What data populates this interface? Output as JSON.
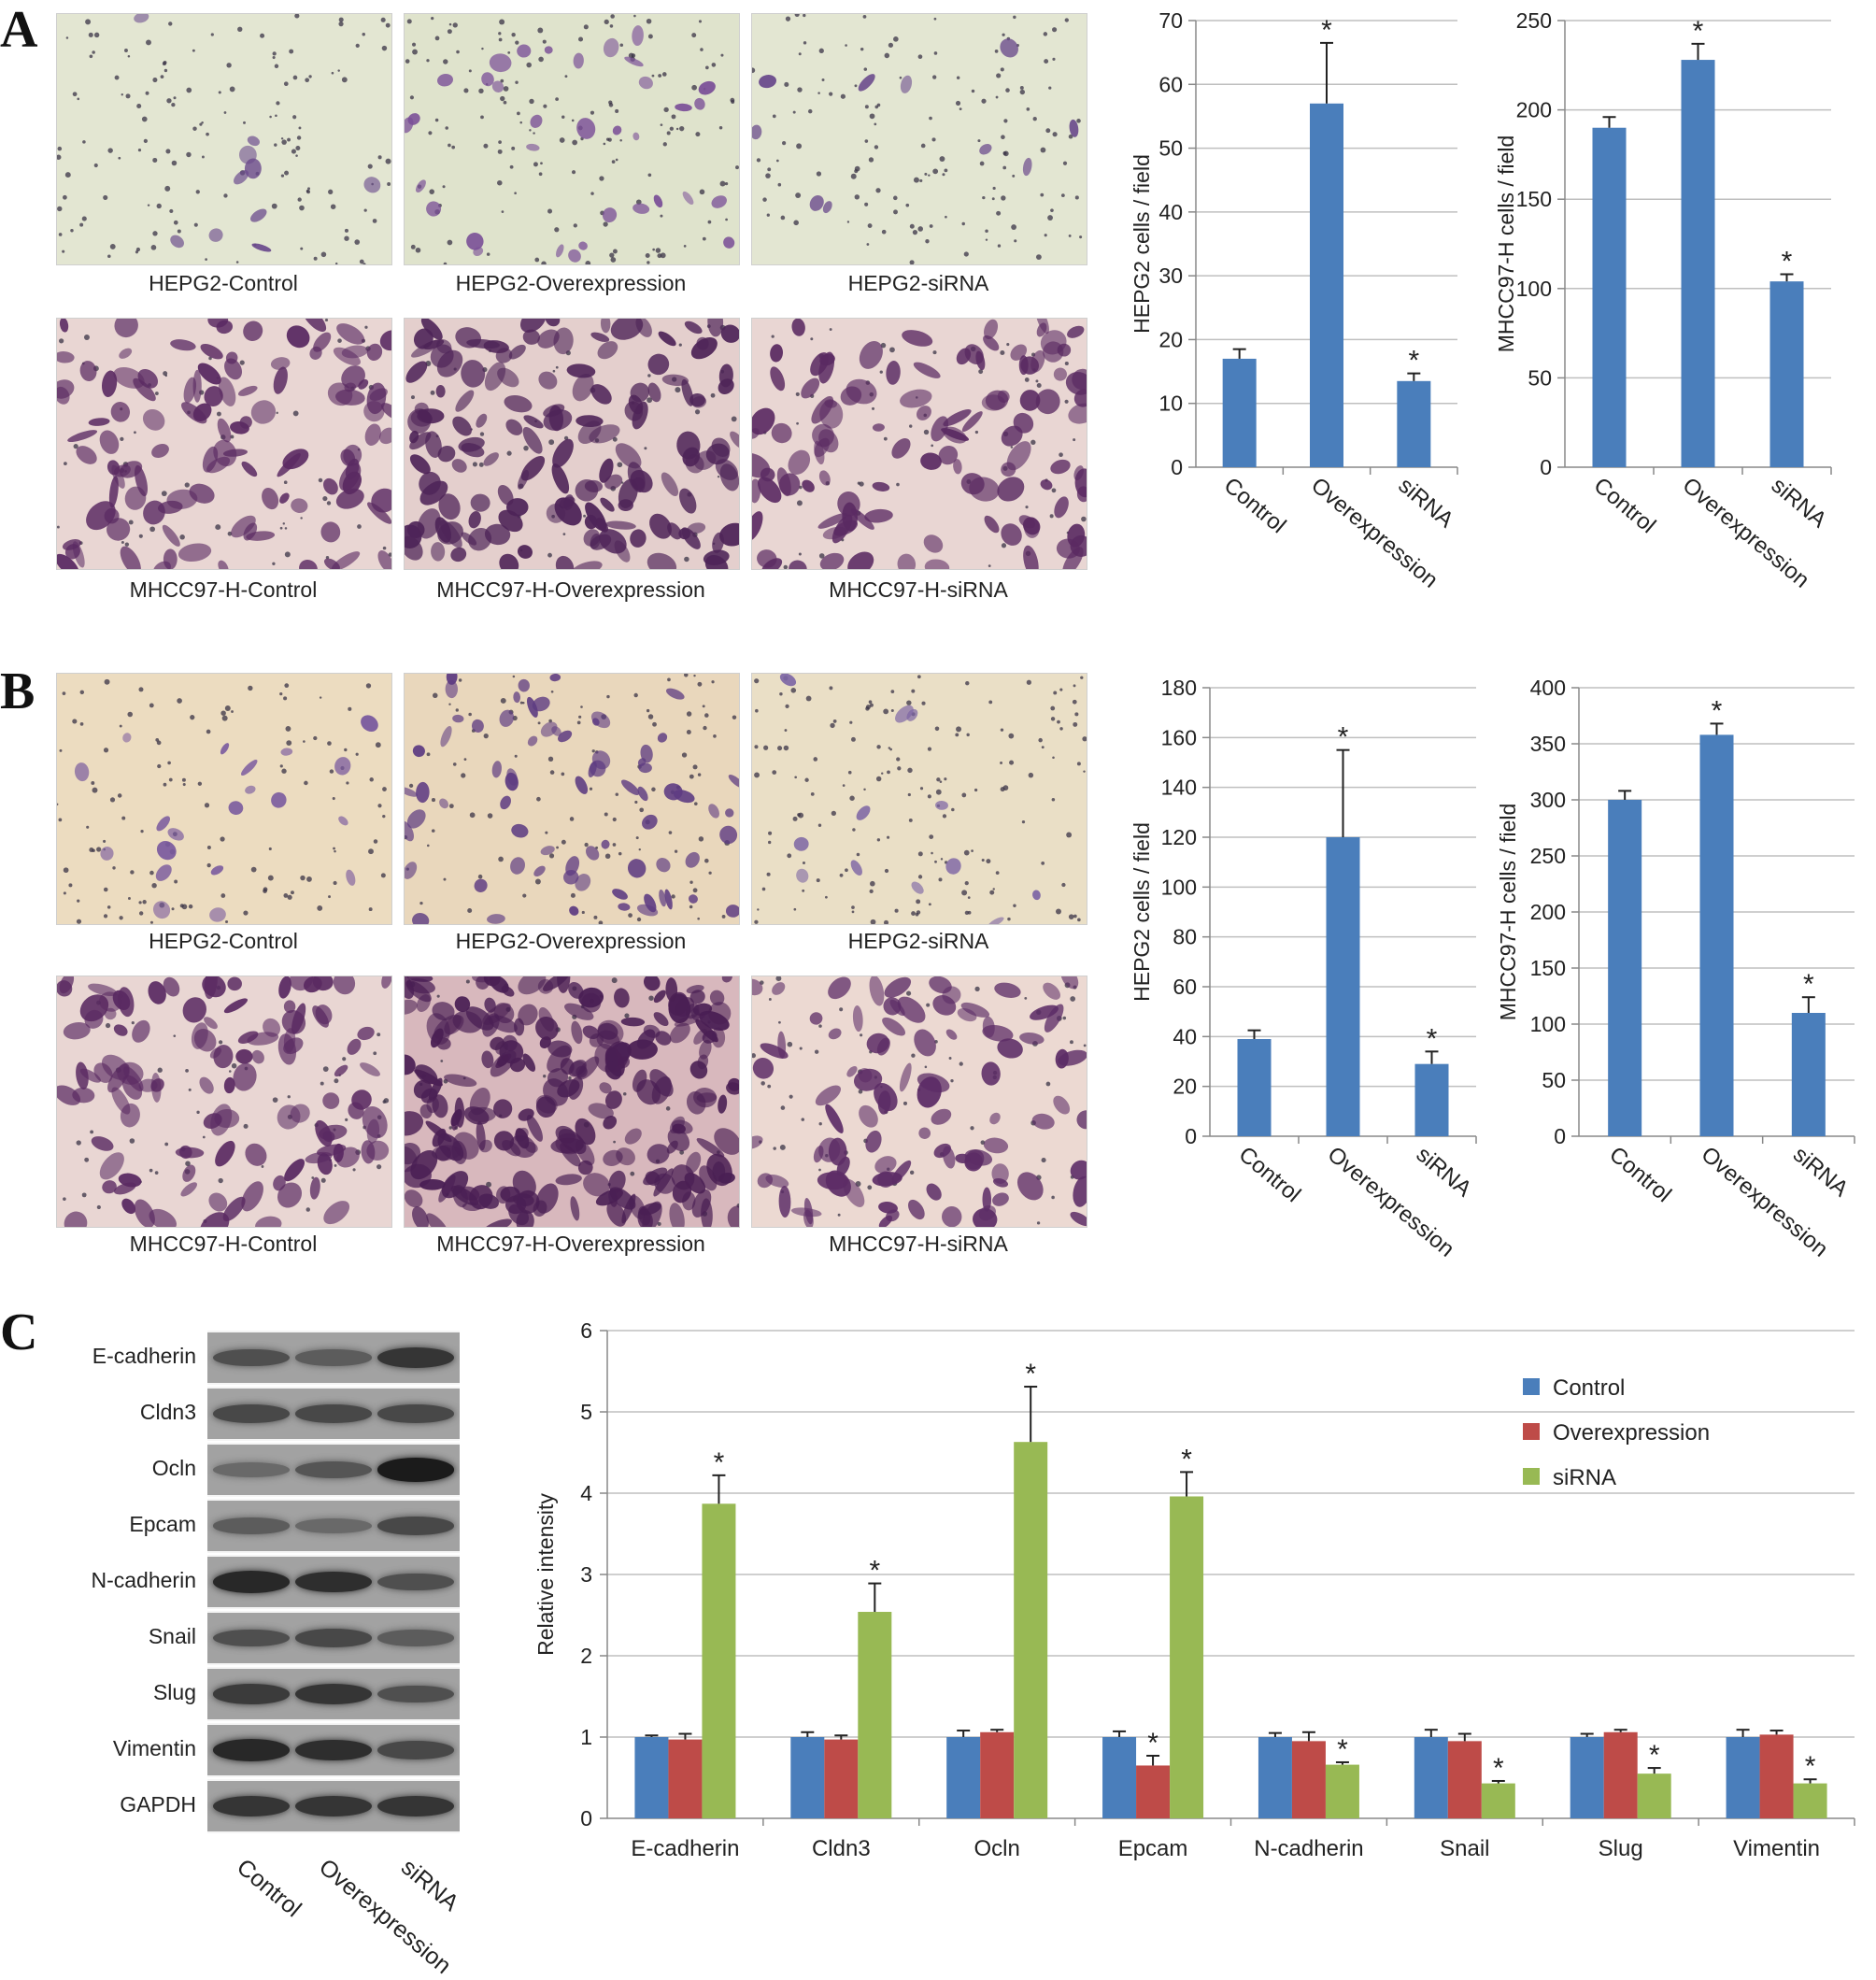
{
  "panels": {
    "A": {
      "letter": "A",
      "migration_images": [
        {
          "caption": "HEPG2-Control",
          "style": "sparse-green"
        },
        {
          "caption": "HEPG2-Overexpression",
          "style": "sparse-green-more"
        },
        {
          "caption": "HEPG2-siRNA",
          "style": "sparse-green"
        },
        {
          "caption": "MHCC97-H-Control",
          "style": "dense-pink"
        },
        {
          "caption": "MHCC97-H-Overexpression",
          "style": "dense-pink-more"
        },
        {
          "caption": "MHCC97-H-siRNA",
          "style": "dense-pink"
        }
      ]
    },
    "B": {
      "letter": "B",
      "invasion_images": [
        {
          "caption": "HEPG2-Control",
          "style": "sparse-beige"
        },
        {
          "caption": "HEPG2-Overexpression",
          "style": "medium-beige"
        },
        {
          "caption": "HEPG2-siRNA",
          "style": "sparse-beige-few"
        },
        {
          "caption": "MHCC97-H-Control",
          "style": "dense-pink"
        },
        {
          "caption": "MHCC97-H-Overexpression",
          "style": "very-dense-pink"
        },
        {
          "caption": "MHCC97-H-siRNA",
          "style": "dense-pink-light"
        }
      ]
    },
    "C": {
      "letter": "C",
      "blot": {
        "rows": [
          "E-cadherin",
          "Cldn3",
          "Ocln",
          "Epcam",
          "N-cadherin",
          "Snail",
          "Slug",
          "Vimentin",
          "GAPDH"
        ],
        "lanes": [
          "Control",
          "Overexpression",
          "siRNA"
        ],
        "band_intensity": [
          [
            0.55,
            0.45,
            0.75
          ],
          [
            0.6,
            0.6,
            0.6
          ],
          [
            0.35,
            0.5,
            0.95
          ],
          [
            0.45,
            0.35,
            0.6
          ],
          [
            0.85,
            0.8,
            0.55
          ],
          [
            0.55,
            0.6,
            0.45
          ],
          [
            0.7,
            0.75,
            0.55
          ],
          [
            0.85,
            0.8,
            0.6
          ],
          [
            0.75,
            0.75,
            0.75
          ]
        ]
      }
    }
  },
  "colors": {
    "bar": "#4a7ebb",
    "control": "#4a7ebb",
    "overexpression": "#be4b48",
    "sirna": "#98b954",
    "grid": "#bfbfbf",
    "axis": "#888888"
  },
  "chart_data": [
    {
      "id": "A-HEPG2",
      "type": "bar",
      "categories": [
        "Control",
        "Overexpression",
        "siRNA"
      ],
      "values": [
        17,
        57,
        13.5
      ],
      "errors": [
        1.5,
        9.5,
        1.2
      ],
      "significant": [
        false,
        true,
        true
      ],
      "ylabel": "HEPG2 cells / field",
      "ylim": [
        0,
        70
      ],
      "ticks": [
        0,
        10,
        20,
        30,
        40,
        50,
        60,
        70
      ],
      "grid": true
    },
    {
      "id": "A-MHCC97H",
      "type": "bar",
      "categories": [
        "Control",
        "Overexpression",
        "siRNA"
      ],
      "values": [
        190,
        228,
        104
      ],
      "errors": [
        6,
        9,
        4
      ],
      "significant": [
        false,
        true,
        true
      ],
      "ylabel": "MHCC97-H cells / field",
      "ylim": [
        0,
        250
      ],
      "ticks": [
        0,
        50,
        100,
        150,
        200,
        250
      ],
      "grid": true
    },
    {
      "id": "B-HEPG2",
      "type": "bar",
      "categories": [
        "Control",
        "Overexpression",
        "siRNA"
      ],
      "values": [
        39,
        120,
        29
      ],
      "errors": [
        3.5,
        35,
        5
      ],
      "significant": [
        false,
        true,
        true
      ],
      "ylabel": "HEPG2 cells / field",
      "ylim": [
        0,
        180
      ],
      "ticks": [
        0,
        20,
        40,
        60,
        80,
        100,
        120,
        140,
        160,
        180
      ],
      "grid": true
    },
    {
      "id": "B-MHCC97H",
      "type": "bar",
      "categories": [
        "Control",
        "Overexpression",
        "siRNA"
      ],
      "values": [
        300,
        358,
        110
      ],
      "errors": [
        8,
        10,
        14
      ],
      "significant": [
        false,
        true,
        true
      ],
      "ylabel": "MHCC97-H cells / field",
      "ylim": [
        0,
        400
      ],
      "ticks": [
        0,
        50,
        100,
        150,
        200,
        250,
        300,
        350,
        400
      ],
      "grid": true
    },
    {
      "id": "C-intensity",
      "type": "bar",
      "categories": [
        "E-cadherin",
        "Cldn3",
        "Ocln",
        "Epcam",
        "N-cadherin",
        "Snail",
        "Slug",
        "Vimentin"
      ],
      "series": [
        {
          "name": "Control",
          "values": [
            1.0,
            1.0,
            1.0,
            1.0,
            1.0,
            1.0,
            1.0,
            1.0
          ],
          "errors": [
            0.02,
            0.06,
            0.08,
            0.07,
            0.05,
            0.09,
            0.04,
            0.09
          ],
          "significant": [
            false,
            false,
            false,
            false,
            false,
            false,
            false,
            false
          ]
        },
        {
          "name": "Overexpression",
          "values": [
            0.97,
            0.97,
            1.06,
            0.65,
            0.95,
            0.95,
            1.06,
            1.03
          ],
          "errors": [
            0.07,
            0.05,
            0.03,
            0.12,
            0.11,
            0.09,
            0.03,
            0.05
          ],
          "significant": [
            false,
            false,
            false,
            true,
            false,
            false,
            false,
            false
          ]
        },
        {
          "name": "siRNA",
          "values": [
            3.87,
            2.54,
            4.63,
            3.96,
            0.66,
            0.43,
            0.55,
            0.43
          ],
          "errors": [
            0.35,
            0.35,
            0.68,
            0.3,
            0.03,
            0.03,
            0.07,
            0.05
          ],
          "significant": [
            true,
            true,
            true,
            true,
            true,
            true,
            true,
            true
          ]
        }
      ],
      "ylabel": "Relative intensity",
      "ylim": [
        0,
        6
      ],
      "ticks": [
        0,
        1,
        2,
        3,
        4,
        5,
        6
      ],
      "grid": true,
      "legend_position": "top-right"
    }
  ]
}
